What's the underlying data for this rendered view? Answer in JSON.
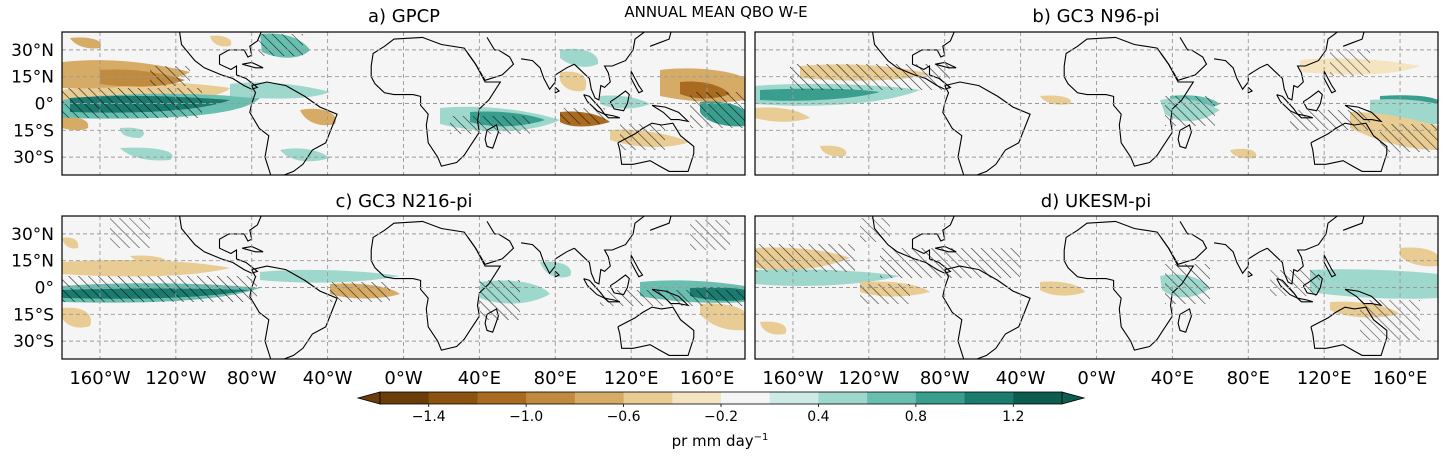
{
  "figure": {
    "suptitle": "ANNUAL MEAN QBO W-E"
  },
  "panels": [
    {
      "id": "a",
      "title": "a) GPCP"
    },
    {
      "id": "b",
      "title": "b) GC3 N96-pi"
    },
    {
      "id": "c",
      "title": "c) GC3 N216-pi"
    },
    {
      "id": "d",
      "title": "d) UKESM-pi"
    }
  ],
  "axes": {
    "lat_ticks": [
      "30°N",
      "15°N",
      "0°",
      "15°S",
      "30°S"
    ],
    "lon_ticks": [
      "160°W",
      "120°W",
      "80°W",
      "40°W",
      "0°W",
      "40°E",
      "80°E",
      "120°E",
      "160°E"
    ]
  },
  "colorbar": {
    "tick_labels": [
      "−1.4",
      "−1.0",
      "−0.6",
      "−0.2",
      "0.4",
      "0.8",
      "1.2"
    ],
    "label": "pr mm day",
    "label_sup": "−1",
    "levels": [
      -1.6,
      -1.4,
      -1.2,
      -1.0,
      -0.8,
      -0.6,
      -0.4,
      -0.2,
      0.2,
      0.4,
      0.6,
      0.8,
      1.0,
      1.2,
      1.4
    ],
    "colors": [
      "#6b3d09",
      "#8a5310",
      "#a86b1f",
      "#c08a3f",
      "#d6ab66",
      "#e8cc94",
      "#f4e4c0",
      "#f5f5f5",
      "#cdeae5",
      "#9ed8cd",
      "#68bfb0",
      "#3a9e8f",
      "#1b7b6e",
      "#0d5c50"
    ],
    "extend": "both"
  }
}
